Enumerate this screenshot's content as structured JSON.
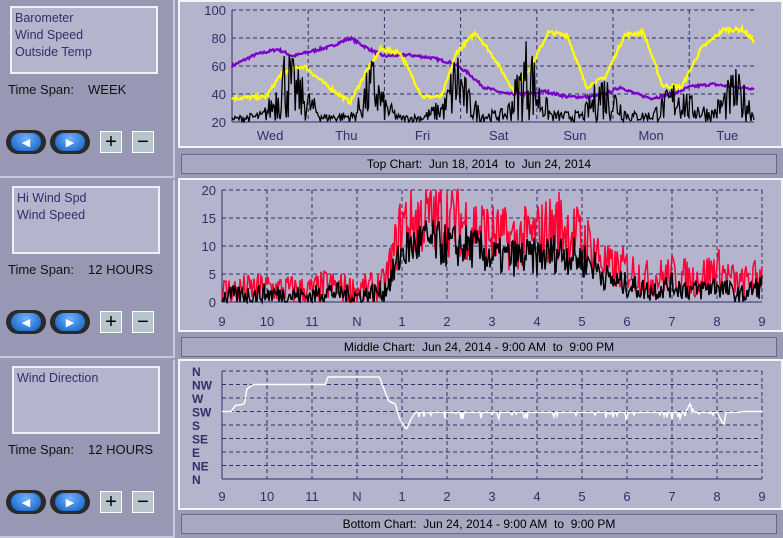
{
  "panels": [
    {
      "list": [
        "Barometer",
        "Wind Speed",
        "Outside Temp"
      ],
      "time_span_label": "Time Span:",
      "time_span": "WEEK",
      "caption": {
        "label": "Top Chart:",
        "from": "Jun 18, 2014",
        "to_word": "to",
        "to": "Jun 24, 2014"
      }
    },
    {
      "list": [
        "Hi Wind Spd",
        "Wind Speed"
      ],
      "time_span_label": "Time Span:",
      "time_span": "12 HOURS",
      "caption": {
        "label": "Middle Chart:",
        "from": "Jun 24, 2014 - 9:00 AM",
        "to_word": "to",
        "to": "9:00 PM"
      }
    },
    {
      "list": [
        "Wind Direction"
      ],
      "time_span_label": "Time Span:",
      "time_span": "12 HOURS",
      "caption": {
        "label": "Bottom Chart:",
        "from": "Jun 24, 2014 - 9:00 AM",
        "to_word": "to",
        "to": "9:00 PM"
      }
    }
  ],
  "buttons": {
    "prev": "◀",
    "next": "▶",
    "plus": "+",
    "minus": "−"
  },
  "chart_data": [
    {
      "type": "line",
      "title": "Top Chart",
      "xlabels": [
        "Wed",
        "Thu",
        "Fri",
        "Sat",
        "Sun",
        "Mon",
        "Tue"
      ],
      "xlim": [
        0,
        6.85
      ],
      "ylim": [
        20,
        100
      ],
      "yticks": [
        20,
        40,
        60,
        80,
        100
      ],
      "series": [
        {
          "name": "Barometer",
          "color": "#7a00c8",
          "points": [
            [
              0,
              60
            ],
            [
              0.3,
              68
            ],
            [
              0.6,
              72
            ],
            [
              0.8,
              67
            ],
            [
              1.0,
              70
            ],
            [
              1.3,
              74
            ],
            [
              1.55,
              80
            ],
            [
              1.8,
              72
            ],
            [
              2.0,
              67
            ],
            [
              2.3,
              68
            ],
            [
              2.6,
              66
            ],
            [
              2.9,
              62
            ],
            [
              3.1,
              55
            ],
            [
              3.3,
              45
            ],
            [
              3.6,
              40
            ],
            [
              3.9,
              40
            ],
            [
              4.1,
              42
            ],
            [
              4.4,
              38
            ],
            [
              4.7,
              38
            ],
            [
              4.9,
              40
            ],
            [
              5.1,
              45
            ],
            [
              5.3,
              40
            ],
            [
              5.5,
              37
            ],
            [
              5.8,
              40
            ],
            [
              6.0,
              45
            ],
            [
              6.3,
              47
            ],
            [
              6.6,
              45
            ],
            [
              6.85,
              44
            ]
          ]
        },
        {
          "name": "Outside Temp",
          "color": "#ffff00",
          "points": [
            [
              0,
              37
            ],
            [
              0.45,
              38
            ],
            [
              0.65,
              55
            ],
            [
              0.95,
              60
            ],
            [
              1.2,
              48
            ],
            [
              1.55,
              34
            ],
            [
              1.75,
              55
            ],
            [
              1.95,
              72
            ],
            [
              2.2,
              70
            ],
            [
              2.5,
              38
            ],
            [
              2.75,
              38
            ],
            [
              2.95,
              70
            ],
            [
              3.2,
              84
            ],
            [
              3.45,
              65
            ],
            [
              3.7,
              42
            ],
            [
              3.95,
              62
            ],
            [
              4.15,
              84
            ],
            [
              4.4,
              82
            ],
            [
              4.65,
              45
            ],
            [
              4.9,
              52
            ],
            [
              5.15,
              82
            ],
            [
              5.4,
              84
            ],
            [
              5.65,
              46
            ],
            [
              5.9,
              45
            ],
            [
              6.15,
              72
            ],
            [
              6.45,
              86
            ],
            [
              6.7,
              86
            ],
            [
              6.85,
              78
            ]
          ]
        },
        {
          "name": "Wind Speed",
          "color": "#000000",
          "points": [
            [
              0,
              24
            ],
            [
              0.4,
              28
            ],
            [
              0.55,
              45
            ],
            [
              0.7,
              80
            ],
            [
              0.85,
              60
            ],
            [
              1.0,
              45
            ],
            [
              1.2,
              26
            ],
            [
              1.6,
              28
            ],
            [
              1.85,
              70
            ],
            [
              2.0,
              40
            ],
            [
              2.2,
              25
            ],
            [
              2.5,
              26
            ],
            [
              2.8,
              40
            ],
            [
              2.95,
              80
            ],
            [
              3.1,
              45
            ],
            [
              3.3,
              28
            ],
            [
              3.6,
              30
            ],
            [
              3.8,
              70
            ],
            [
              3.9,
              92
            ],
            [
              4.0,
              55
            ],
            [
              4.2,
              28
            ],
            [
              4.6,
              28
            ],
            [
              4.85,
              60
            ],
            [
              5.0,
              50
            ],
            [
              5.2,
              28
            ],
            [
              5.5,
              28
            ],
            [
              5.85,
              55
            ],
            [
              6.0,
              40
            ],
            [
              6.3,
              30
            ],
            [
              6.6,
              60
            ],
            [
              6.8,
              40
            ],
            [
              6.85,
              25
            ]
          ]
        }
      ]
    },
    {
      "type": "line",
      "title": "Middle Chart",
      "xlabels": [
        "9",
        "10",
        "11",
        "N",
        "1",
        "2",
        "3",
        "4",
        "5",
        "6",
        "7",
        "8",
        "9"
      ],
      "xlim": [
        0,
        12
      ],
      "ylim": [
        0,
        20
      ],
      "yticks": [
        0,
        5,
        10,
        15,
        20
      ],
      "series": [
        {
          "name": "Hi Wind Spd",
          "color": "#ff0033",
          "points": [
            [
              0,
              2
            ],
            [
              1,
              2.5
            ],
            [
              2,
              2
            ],
            [
              2.3,
              3
            ],
            [
              3,
              2
            ],
            [
              3.6,
              3
            ],
            [
              3.8,
              8
            ],
            [
              4,
              14
            ],
            [
              4.5,
              15
            ],
            [
              5,
              15
            ],
            [
              5.5,
              14
            ],
            [
              6,
              12
            ],
            [
              6.5,
              11
            ],
            [
              7,
              12
            ],
            [
              7.5,
              14
            ],
            [
              8.2,
              10
            ],
            [
              8.6,
              6
            ],
            [
              9,
              6
            ],
            [
              9.5,
              4
            ],
            [
              10,
              5
            ],
            [
              10.5,
              4
            ],
            [
              11,
              6
            ],
            [
              11.5,
              3
            ],
            [
              12,
              5
            ]
          ]
        },
        {
          "name": "Wind Speed",
          "color": "#000000",
          "points": [
            [
              0,
              1
            ],
            [
              1,
              1.5
            ],
            [
              2,
              1
            ],
            [
              2.3,
              2
            ],
            [
              3,
              1
            ],
            [
              3.6,
              2
            ],
            [
              3.8,
              5
            ],
            [
              4,
              9
            ],
            [
              4.5,
              11
            ],
            [
              5,
              10
            ],
            [
              5.5,
              10
            ],
            [
              6,
              8
            ],
            [
              6.5,
              8
            ],
            [
              7,
              8
            ],
            [
              7.5,
              9
            ],
            [
              8.2,
              7
            ],
            [
              8.6,
              4
            ],
            [
              9,
              3
            ],
            [
              9.5,
              2
            ],
            [
              10,
              3
            ],
            [
              10.5,
              2
            ],
            [
              11,
              3
            ],
            [
              11.5,
              1
            ],
            [
              12,
              3
            ]
          ]
        }
      ]
    },
    {
      "type": "line",
      "title": "Bottom Chart",
      "xlabels": [
        "9",
        "10",
        "11",
        "N",
        "1",
        "2",
        "3",
        "4",
        "5",
        "6",
        "7",
        "8",
        "9"
      ],
      "ylabels": [
        "N",
        "NW",
        "W",
        "SW",
        "S",
        "SE",
        "E",
        "NE",
        "N"
      ],
      "xlim": [
        0,
        12
      ],
      "ylim": [
        0,
        360
      ],
      "series": [
        {
          "name": "Wind Direction",
          "color": "#ffffff",
          "points": [
            [
              0,
              225
            ],
            [
              0.2,
              225
            ],
            [
              0.3,
              245
            ],
            [
              0.5,
              250
            ],
            [
              0.55,
              300
            ],
            [
              0.7,
              315
            ],
            [
              2.3,
              315
            ],
            [
              2.35,
              340
            ],
            [
              3.5,
              340
            ],
            [
              3.7,
              260
            ],
            [
              3.85,
              250
            ],
            [
              3.95,
              200
            ],
            [
              4.1,
              165
            ],
            [
              4.2,
              200
            ],
            [
              4.3,
              222
            ],
            [
              10.3,
              222
            ],
            [
              10.4,
              250
            ],
            [
              10.5,
              222
            ],
            [
              11.0,
              222
            ],
            [
              11.15,
              180
            ],
            [
              11.2,
              222
            ],
            [
              11.5,
              222
            ],
            [
              11.55,
              225
            ]
          ]
        }
      ]
    }
  ]
}
